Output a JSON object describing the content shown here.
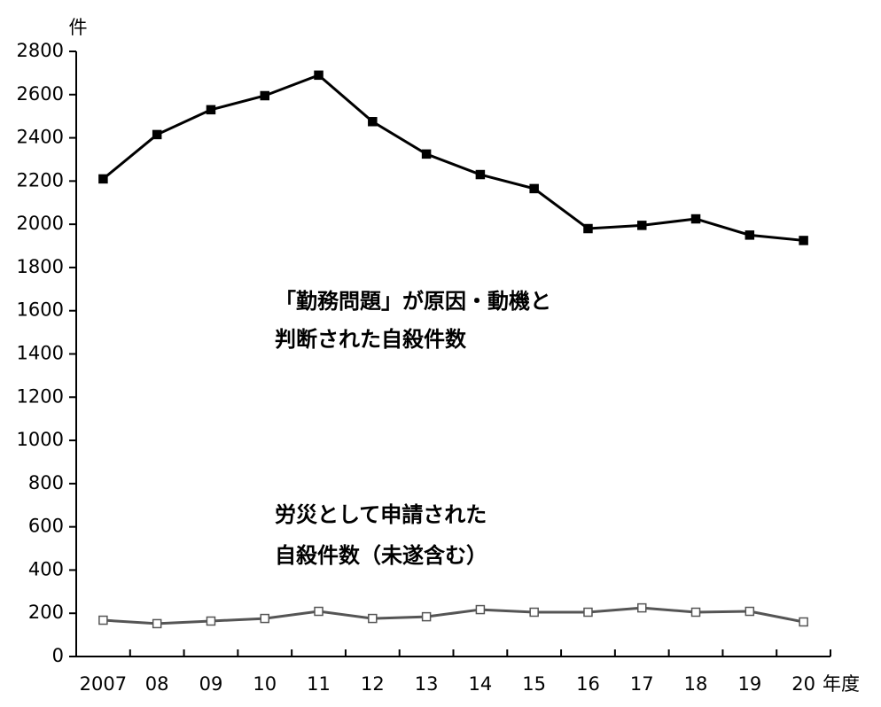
{
  "chart_data": {
    "type": "line",
    "y_unit": "件",
    "x_unit": "年度",
    "categories": [
      "2007",
      "08",
      "09",
      "10",
      "11",
      "12",
      "13",
      "14",
      "15",
      "16",
      "17",
      "18",
      "19",
      "20"
    ],
    "series": [
      {
        "label": [
          "「勤務問題」が原因・動機と",
          "判断された自殺件数"
        ],
        "color": "#000000",
        "marker_fill": "#000000",
        "values": [
          2210,
          2415,
          2530,
          2595,
          2690,
          2475,
          2325,
          2230,
          2165,
          1980,
          1995,
          2025,
          1950,
          1925
        ]
      },
      {
        "label": [
          "労災として申請された",
          "自殺件数（未遂含む）"
        ],
        "color": "#555555",
        "marker_fill": "#ffffff",
        "values": [
          168,
          152,
          164,
          176,
          209,
          176,
          184,
          217,
          205,
          205,
          225,
          205,
          209,
          160
        ]
      }
    ],
    "ylim": [
      0,
      2800
    ],
    "yticks": [
      0,
      200,
      400,
      600,
      800,
      1000,
      1200,
      1400,
      1600,
      1800,
      2000,
      2200,
      2400,
      2600,
      2800
    ]
  }
}
